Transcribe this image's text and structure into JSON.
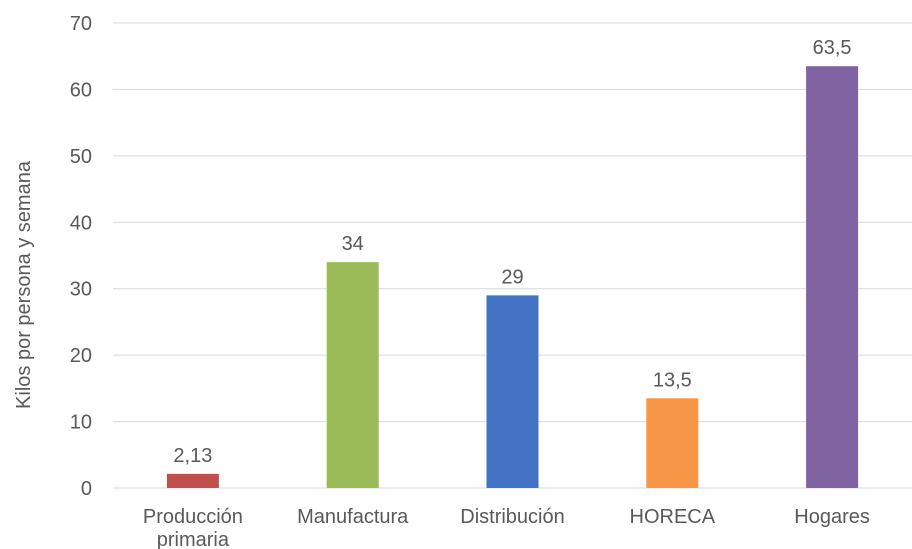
{
  "chart_data": {
    "type": "bar",
    "title": "",
    "xlabel": "",
    "ylabel": "Kilos por persona y semana",
    "ylim": [
      0,
      70
    ],
    "yticks": [
      0,
      10,
      20,
      30,
      40,
      50,
      60,
      70
    ],
    "ytick_labels": [
      "0",
      "10",
      "20",
      "30",
      "40",
      "50",
      "60",
      "70"
    ],
    "categories": [
      [
        "Producción",
        "primaria"
      ],
      [
        "Manufactura"
      ],
      [
        "Distribución"
      ],
      [
        "HORECA"
      ],
      [
        "Hogares"
      ]
    ],
    "values": [
      2.13,
      34,
      29,
      13.5,
      63.5
    ],
    "data_labels": [
      "2,13",
      "34",
      "29",
      "13,5",
      "63,5"
    ],
    "colors": [
      "#c0504d",
      "#9bbb59",
      "#4472c4",
      "#f79646",
      "#8064a2"
    ],
    "grid": true,
    "legend": "none"
  }
}
